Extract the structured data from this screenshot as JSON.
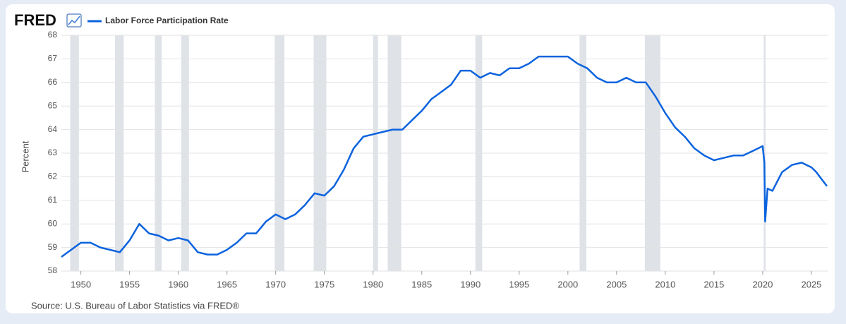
{
  "logo": "FRED",
  "chart_data": {
    "type": "line",
    "ylabel": "Percent",
    "source": "Source: U.S. Bureau of Labor Statistics via FRED®",
    "xlim": [
      1948.0,
      2026.67
    ],
    "ylim": [
      58,
      68
    ],
    "xticks": [
      1950,
      1955,
      1960,
      1965,
      1970,
      1975,
      1980,
      1985,
      1990,
      1995,
      2000,
      2005,
      2010,
      2015,
      2020,
      2025
    ],
    "yticks": [
      58,
      59,
      60,
      61,
      62,
      63,
      64,
      65,
      66,
      67,
      68
    ],
    "grid": true,
    "recessions": [
      [
        1948.9,
        1949.8
      ],
      [
        1953.5,
        1954.4
      ],
      [
        1957.6,
        1958.3
      ],
      [
        1960.3,
        1961.1
      ],
      [
        1969.9,
        1970.9
      ],
      [
        1973.9,
        1975.2
      ],
      [
        1980.0,
        1980.5
      ],
      [
        1981.5,
        1982.9
      ],
      [
        1990.5,
        1991.2
      ],
      [
        2001.2,
        2001.9
      ],
      [
        2007.9,
        2009.5
      ],
      [
        2020.1,
        2020.3
      ]
    ],
    "series": [
      {
        "name": "Labor Force Participation Rate",
        "color": "#0b63de",
        "x": [
          1948,
          1949,
          1950,
          1951,
          1952,
          1953,
          1954,
          1955,
          1956,
          1957,
          1958,
          1959,
          1960,
          1961,
          1962,
          1963,
          1964,
          1965,
          1966,
          1967,
          1968,
          1969,
          1970,
          1971,
          1972,
          1973,
          1974,
          1975,
          1976,
          1977,
          1978,
          1979,
          1980,
          1981,
          1982,
          1983,
          1984,
          1985,
          1986,
          1987,
          1988,
          1989,
          1990,
          1991,
          1992,
          1993,
          1994,
          1995,
          1996,
          1997,
          1998,
          1999,
          2000,
          2001,
          2002,
          2003,
          2004,
          2005,
          2006,
          2007,
          2008,
          2009,
          2010,
          2011,
          2012,
          2013,
          2014,
          2015,
          2016,
          2017,
          2018,
          2019,
          2020.0,
          2020.17,
          2020.25,
          2020.5,
          2021,
          2022,
          2023,
          2024,
          2025,
          2025.5,
          2026.6
        ],
        "values": [
          58.6,
          58.9,
          59.2,
          59.2,
          59.0,
          58.9,
          58.8,
          59.3,
          60.0,
          59.6,
          59.5,
          59.3,
          59.4,
          59.3,
          58.8,
          58.7,
          58.7,
          58.9,
          59.2,
          59.6,
          59.6,
          60.1,
          60.4,
          60.2,
          60.4,
          60.8,
          61.3,
          61.2,
          61.6,
          62.3,
          63.2,
          63.7,
          63.8,
          63.9,
          64.0,
          64.0,
          64.4,
          64.8,
          65.3,
          65.6,
          65.9,
          66.5,
          66.5,
          66.2,
          66.4,
          66.3,
          66.6,
          66.6,
          66.8,
          67.1,
          67.1,
          67.1,
          67.1,
          66.8,
          66.6,
          66.2,
          66.0,
          66.0,
          66.2,
          66.0,
          66.0,
          65.4,
          64.7,
          64.1,
          63.7,
          63.2,
          62.9,
          62.7,
          62.8,
          62.9,
          62.9,
          63.1,
          63.3,
          62.6,
          60.1,
          61.5,
          61.4,
          62.2,
          62.5,
          62.6,
          62.4,
          62.2,
          61.6
        ]
      }
    ]
  }
}
